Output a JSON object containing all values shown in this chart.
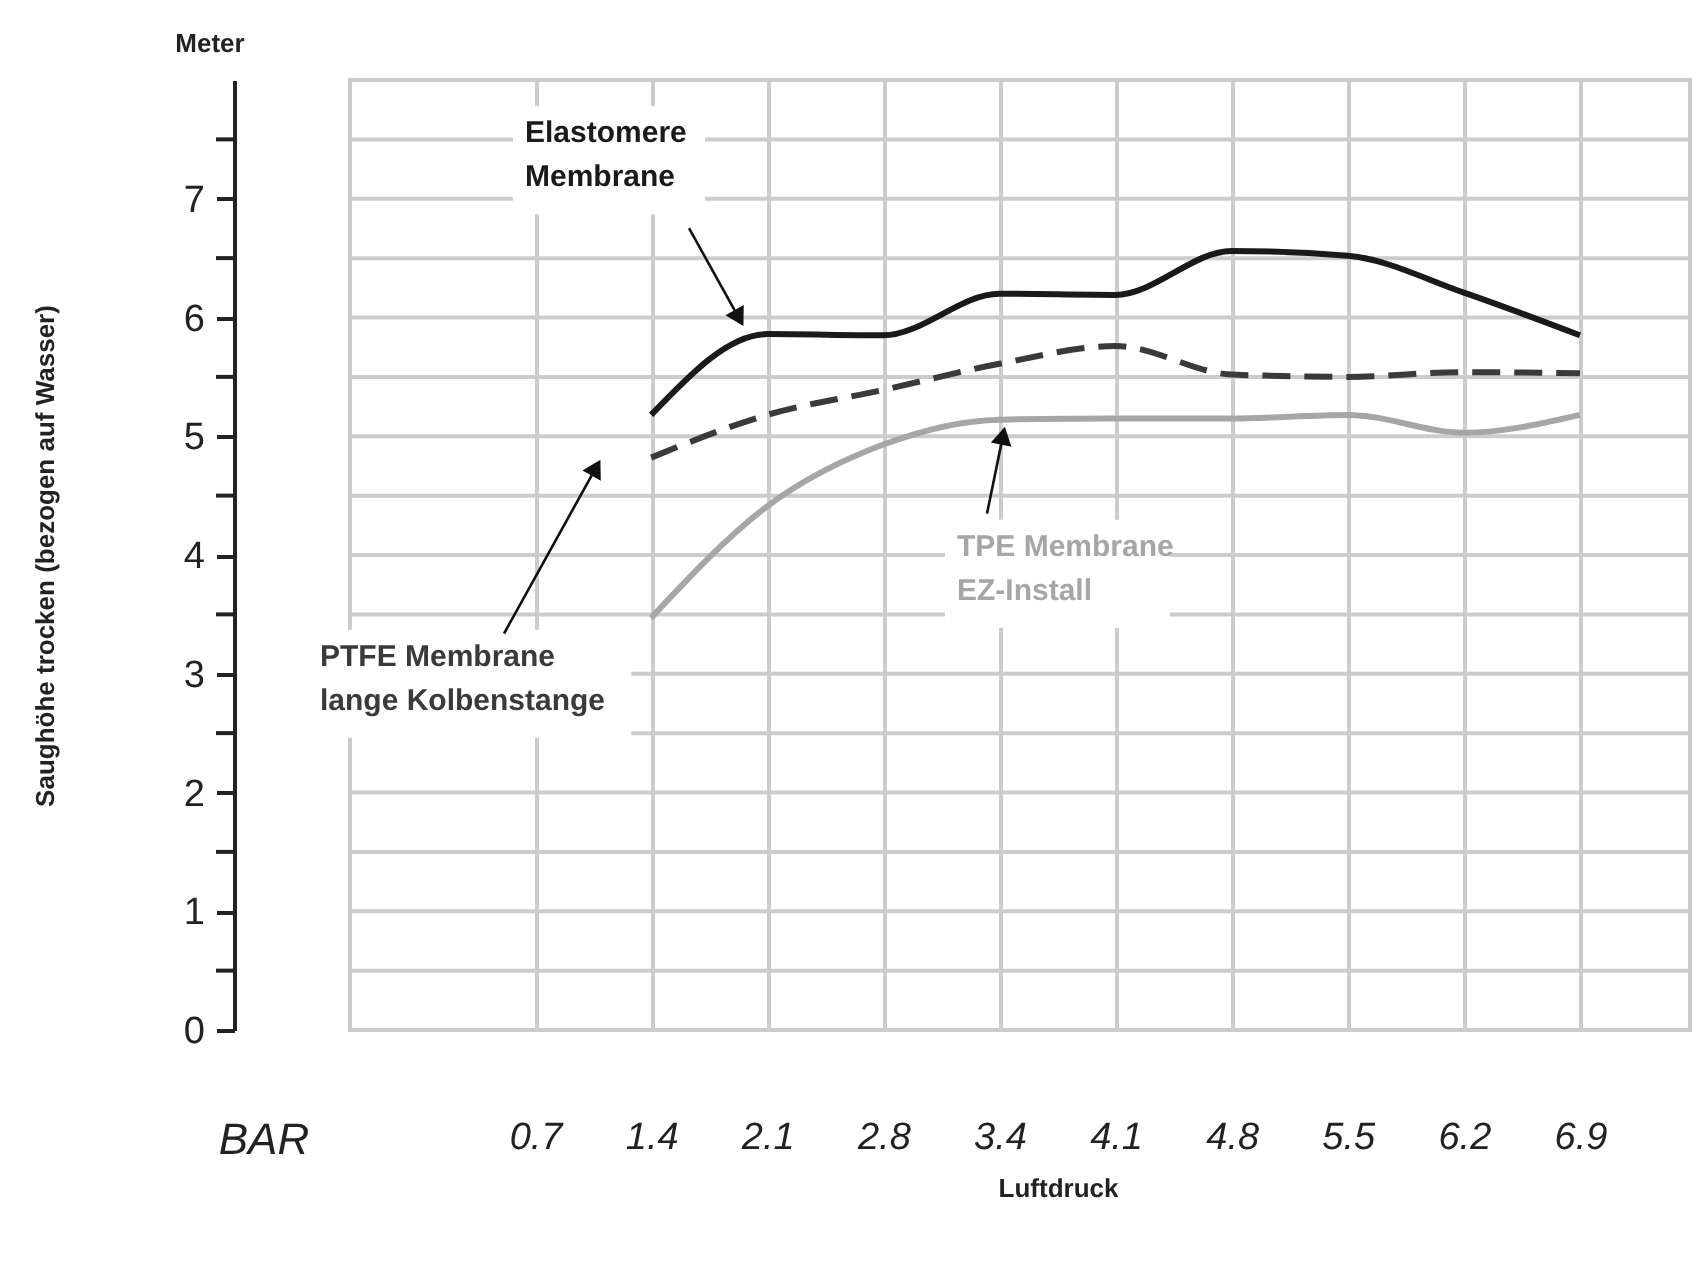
{
  "chart_data": {
    "type": "line",
    "ylabel": "Saughöhe trocken (bezogen auf Wasser)",
    "xlabel": "Luftdruck",
    "annotations": [
      "Meter",
      "BAR"
    ],
    "categories": [
      "0.7",
      "1.4",
      "2.1",
      "2.8",
      "3.4",
      "4.1",
      "4.8",
      "5.5",
      "6.2",
      "6.9"
    ],
    "series": [
      {
        "name": "Elastomere\nMembrane",
        "color": "#1a1a1a",
        "line_style": "solid",
        "values": [
          null,
          5.18,
          5.86,
          5.85,
          6.2,
          6.19,
          6.56,
          6.52,
          6.21,
          5.85
        ]
      },
      {
        "name": "PTFE Membrane\nlange Kolbenstange",
        "color": "#3a3a3a",
        "line_style": "dashed",
        "values": [
          null,
          4.82,
          5.18,
          5.39,
          5.61,
          5.76,
          5.52,
          5.5,
          5.54,
          5.53
        ]
      },
      {
        "name": "TPE Membrane\nEZ-Install",
        "color": "#a6a6a6",
        "line_style": "solid",
        "values": [
          null,
          3.47,
          4.41,
          4.93,
          5.14,
          5.15,
          5.15,
          5.18,
          5.03,
          5.18
        ]
      }
    ],
    "ylim": [
      0,
      8
    ],
    "yticks": [
      0,
      {
        "value": 0.5,
        "label": null
      },
      1,
      {
        "value": 1.5,
        "label": null
      },
      2,
      {
        "value": 2.5,
        "label": null
      },
      3,
      {
        "value": 3.5,
        "label": null
      },
      4,
      {
        "value": 4.5,
        "label": null
      },
      5,
      {
        "value": 5.5,
        "label": null
      },
      6,
      {
        "value": 6.5,
        "label": null
      },
      7,
      {
        "value": 7.5,
        "label": null
      }
    ],
    "grid": true
  }
}
